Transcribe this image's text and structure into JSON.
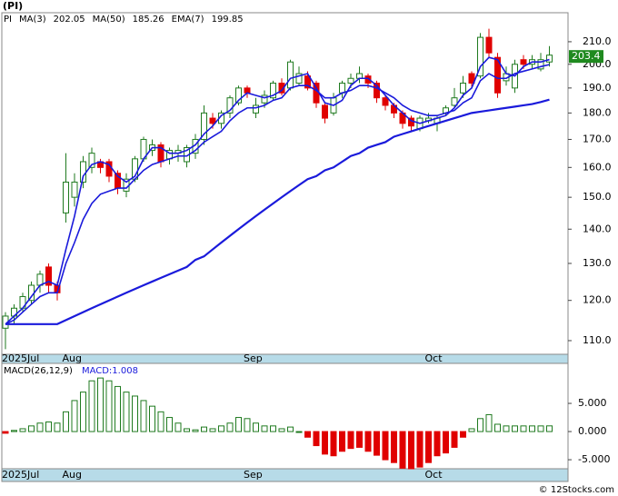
{
  "title": "(PI)",
  "footer": "© 12Stocks.com",
  "chart_data": [
    {
      "type": "candlestick",
      "symbol": "PI",
      "log_scale": true,
      "categories": [
        "2025Jul",
        null,
        null,
        null,
        null,
        null,
        null,
        "Aug",
        null,
        null,
        null,
        null,
        null,
        null,
        null,
        null,
        null,
        null,
        null,
        null,
        null,
        null,
        null,
        null,
        null,
        null,
        null,
        null,
        "Sep",
        null,
        null,
        null,
        null,
        null,
        null,
        null,
        null,
        null,
        null,
        null,
        null,
        null,
        null,
        null,
        null,
        null,
        null,
        null,
        null,
        "Oct",
        null,
        null,
        null,
        null,
        null,
        null,
        null,
        null,
        null,
        null,
        null,
        null,
        null,
        null
      ],
      "open": [
        113,
        116,
        118,
        120,
        124,
        129,
        124,
        145,
        150,
        155,
        160,
        162,
        162,
        158,
        152,
        156,
        163,
        166,
        168,
        163,
        165,
        162,
        165,
        170,
        178,
        176,
        180,
        184,
        190,
        180,
        184,
        186,
        192,
        190,
        192,
        195,
        192,
        183,
        180,
        188,
        192,
        194,
        195,
        192,
        186,
        183,
        180,
        178,
        174,
        177,
        176,
        180,
        183,
        188,
        196,
        195,
        212,
        203,
        193,
        190,
        202,
        200,
        198,
        201
      ],
      "high": [
        117,
        119,
        122,
        125,
        128,
        130,
        125,
        165,
        158,
        164,
        167,
        163,
        163,
        159,
        158,
        164,
        171,
        170,
        169,
        167,
        168,
        168,
        172,
        183,
        180,
        181,
        187,
        191,
        191,
        186,
        189,
        193,
        194,
        202,
        199,
        197,
        193,
        184,
        188,
        193,
        196,
        199,
        196,
        193,
        187,
        184,
        181,
        179,
        179,
        180,
        179,
        183,
        190,
        195,
        197,
        214,
        216,
        205,
        199,
        202,
        204,
        204,
        205,
        208
      ],
      "low": [
        108,
        114,
        117,
        119,
        122,
        122,
        120,
        142,
        147,
        153,
        158,
        158,
        155,
        151,
        150,
        155,
        162,
        164,
        160,
        161,
        162,
        160,
        163,
        168,
        174,
        174,
        178,
        183,
        186,
        178,
        182,
        185,
        187,
        189,
        191,
        189,
        182,
        176,
        179,
        186,
        190,
        192,
        190,
        184,
        181,
        178,
        174,
        173,
        173,
        176,
        173,
        179,
        182,
        186,
        190,
        194,
        203,
        186,
        191,
        188,
        198,
        198,
        197,
        199
      ],
      "close": [
        116,
        118,
        121,
        124,
        127,
        124,
        122,
        155,
        155,
        162,
        165,
        160,
        157,
        153,
        156,
        163,
        170,
        168,
        162,
        166,
        166,
        167,
        170,
        180,
        176,
        180,
        186,
        190,
        188,
        183,
        187,
        192,
        188,
        201,
        196,
        190,
        184,
        178,
        186,
        192,
        194,
        196,
        192,
        186,
        183,
        180,
        176,
        175,
        178,
        178,
        178,
        182,
        186,
        192,
        192,
        212,
        205,
        188,
        196,
        200,
        200,
        202,
        202,
        204
      ],
      "up_color": "#1f7a1f",
      "down_color": "#e00000",
      "series": [
        {
          "name": "MA(3)",
          "color": "#1a1adb",
          "last": 202.05,
          "values": [
            114,
            116,
            118,
            121,
            124,
            125,
            124,
            134,
            144,
            157,
            161,
            162,
            161,
            157,
            155,
            157,
            163,
            167,
            167,
            165,
            165,
            166,
            168,
            172,
            175,
            179,
            181,
            185,
            188,
            187,
            186,
            187,
            189,
            194,
            195,
            196,
            190,
            184,
            183,
            185,
            191,
            194,
            194,
            191,
            187,
            183,
            180,
            177,
            176,
            177,
            178,
            179,
            182,
            187,
            190,
            199,
            203,
            202,
            196,
            195,
            199,
            201,
            201,
            202.05
          ]
        },
        {
          "name": "MA(50)",
          "color": "#1a1adb",
          "last": 185.26,
          "values": [
            114,
            114,
            114,
            114,
            114,
            114,
            114,
            115,
            116,
            117,
            118,
            119,
            120,
            121,
            122,
            123,
            124,
            125,
            126,
            127,
            128,
            129,
            131,
            132,
            134,
            136,
            138,
            140,
            142,
            144,
            146,
            148,
            150,
            152,
            154,
            156,
            157,
            159,
            160,
            162,
            164,
            165,
            167,
            168,
            169,
            171,
            172,
            173,
            174,
            175,
            176,
            177,
            178,
            179,
            180,
            180.5,
            181,
            181.5,
            182,
            182.5,
            183,
            183.5,
            184.3,
            185.26
          ]
        },
        {
          "name": "EMA(7)",
          "color": "#1a1adb",
          "last": 199.85,
          "values": [
            114,
            115,
            117,
            119,
            121,
            122,
            122,
            130,
            136,
            143,
            148,
            151,
            152,
            153,
            153,
            156,
            159,
            161,
            162,
            163,
            164,
            164,
            166,
            169,
            171,
            173,
            177,
            180,
            182,
            182,
            183,
            185,
            186,
            190,
            191,
            191,
            189,
            186,
            186,
            188,
            189,
            191,
            191,
            190,
            188,
            186,
            183,
            181,
            180,
            179,
            179,
            180,
            181,
            184,
            186,
            193,
            196,
            194,
            194,
            196,
            197,
            198,
            199,
            199.85
          ]
        }
      ],
      "ylim": [
        106.8,
        223.6
      ],
      "yticks": [
        {
          "value": 110,
          "label": "110.0"
        },
        {
          "value": 120,
          "label": "120.0"
        },
        {
          "value": 130,
          "label": "130.0"
        },
        {
          "value": 140,
          "label": "140.0"
        },
        {
          "value": 150,
          "label": "150.0"
        },
        {
          "value": 160,
          "label": "160.0"
        },
        {
          "value": 170,
          "label": "170.0"
        },
        {
          "value": 180,
          "label": "180.0"
        },
        {
          "value": 190,
          "label": "190.0"
        },
        {
          "value": 200,
          "label": "200.0"
        },
        {
          "value": 210,
          "label": "210.0"
        }
      ],
      "price_tag": 203.4,
      "price_tag_color": "#1f8a1f"
    },
    {
      "type": "bar",
      "title": "MACD(26,12,9)",
      "value_text": "MACD:1.008",
      "values": [
        -0.3,
        0.2,
        0.5,
        1.0,
        1.5,
        1.7,
        1.5,
        3.5,
        5.5,
        7,
        9,
        9.5,
        9,
        8,
        7,
        6.3,
        5.5,
        4.5,
        3.5,
        2.5,
        1.5,
        0.5,
        0.3,
        0.8,
        0.5,
        1,
        1.5,
        2.5,
        2.3,
        1.5,
        1.0,
        1.0,
        0.5,
        0.8,
        0,
        -1,
        -2.5,
        -4,
        -4.3,
        -3.5,
        -3,
        -2.8,
        -3.5,
        -4.2,
        -5,
        -5.5,
        -6.5,
        -6.6,
        -6.3,
        -5.5,
        -4.3,
        -3.8,
        -2.8,
        -1,
        0.5,
        2.3,
        3,
        1.3,
        1,
        1,
        1,
        1,
        1,
        1.008
      ],
      "pos_color": "#1f7a1f",
      "neg_color": "#e00000",
      "ylim": [
        -6.6,
        12.1
      ],
      "yticks": [
        {
          "value": 5,
          "label": "5.000"
        },
        {
          "value": 0,
          "label": "0.000"
        },
        {
          "value": -5,
          "label": "-5.000"
        }
      ]
    }
  ]
}
